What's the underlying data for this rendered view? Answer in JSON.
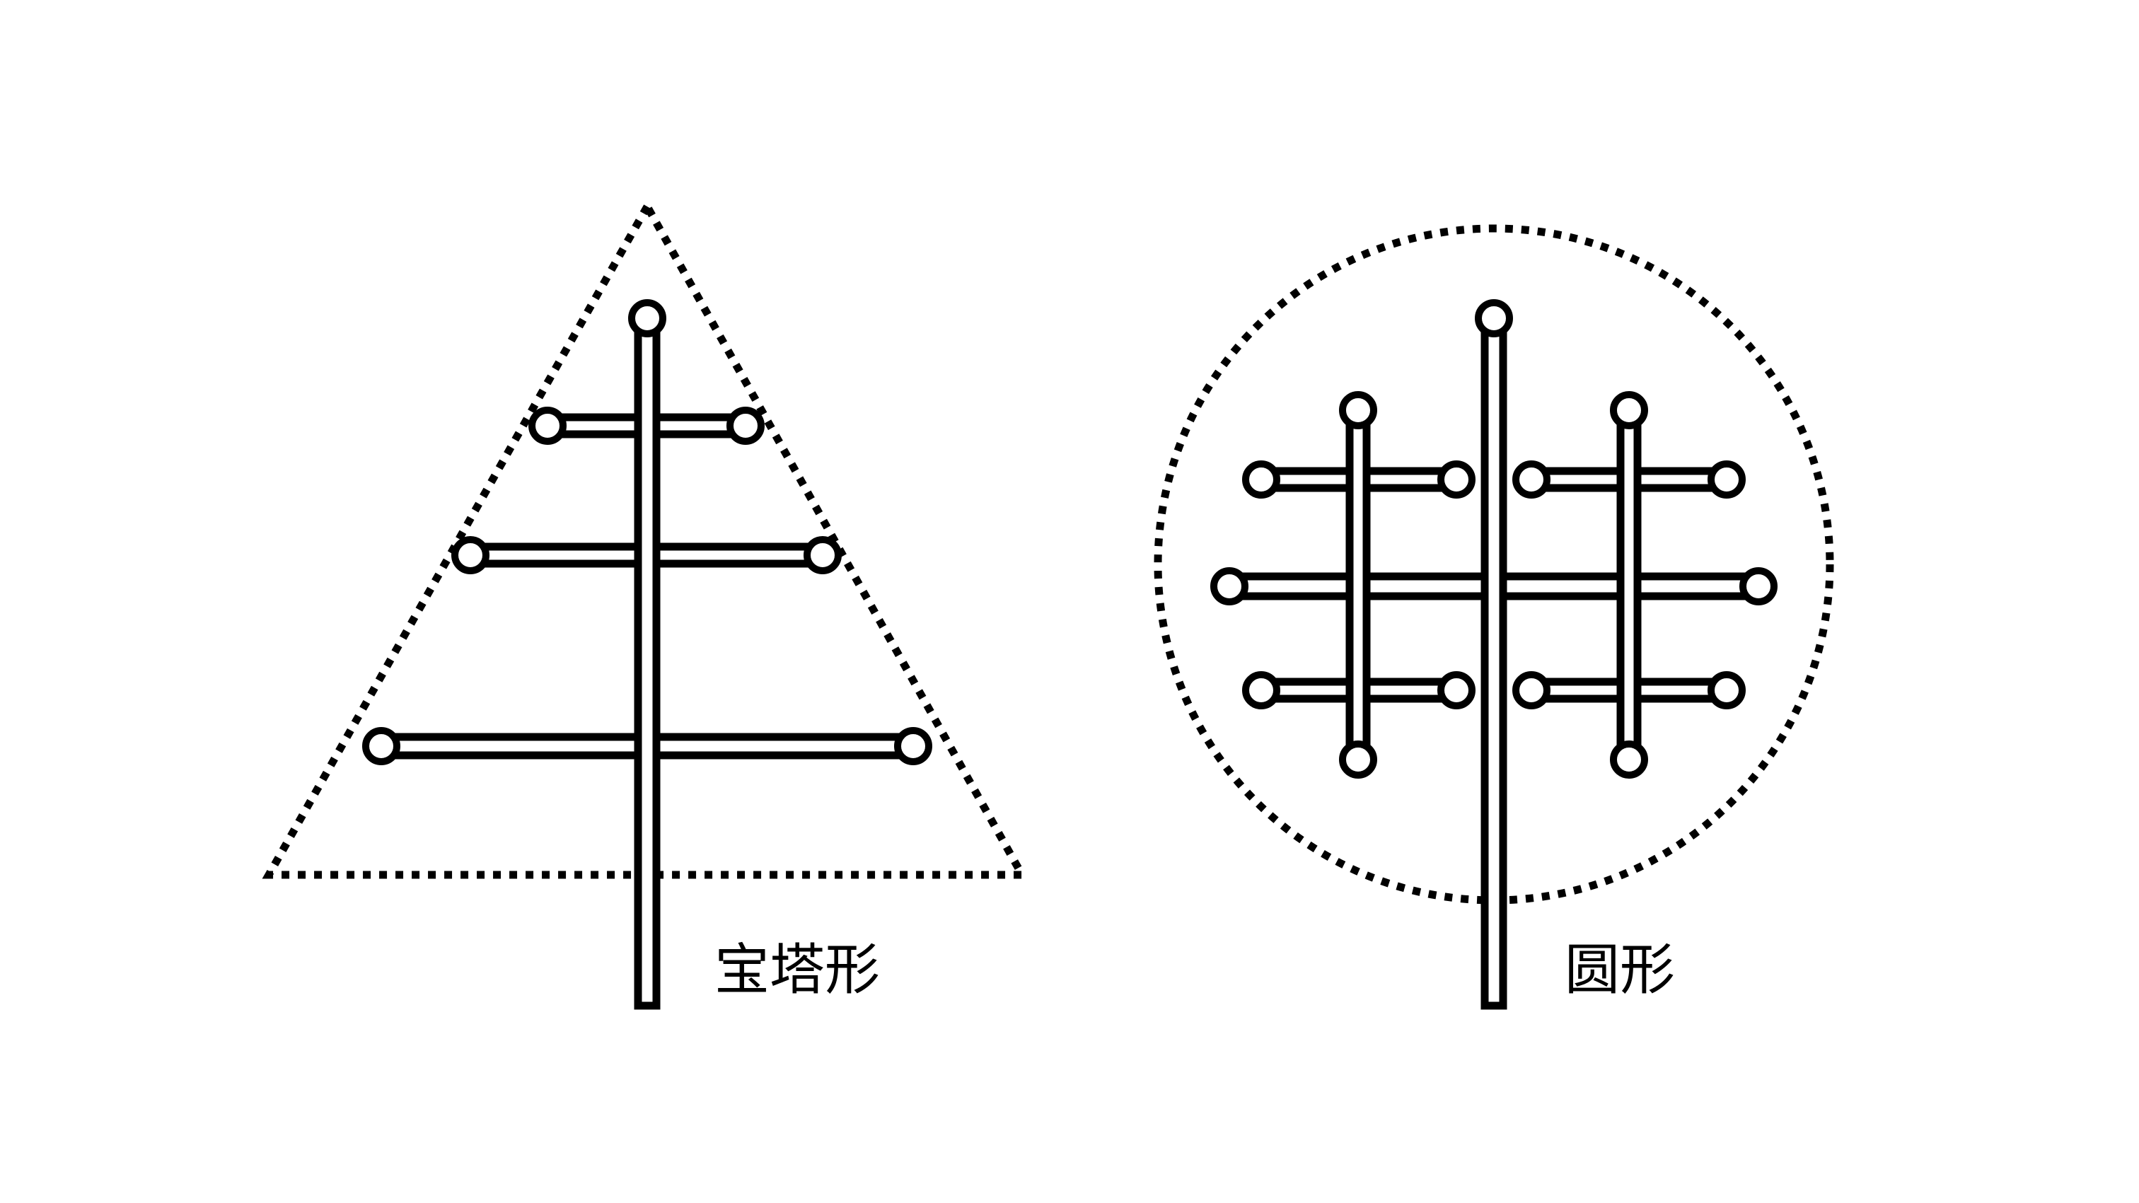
{
  "labels": {
    "pagoda": "宝塔形",
    "round": "圆形"
  },
  "colors": {
    "stroke": "#000000",
    "fill": "#ffffff",
    "background": "#ffffff"
  }
}
